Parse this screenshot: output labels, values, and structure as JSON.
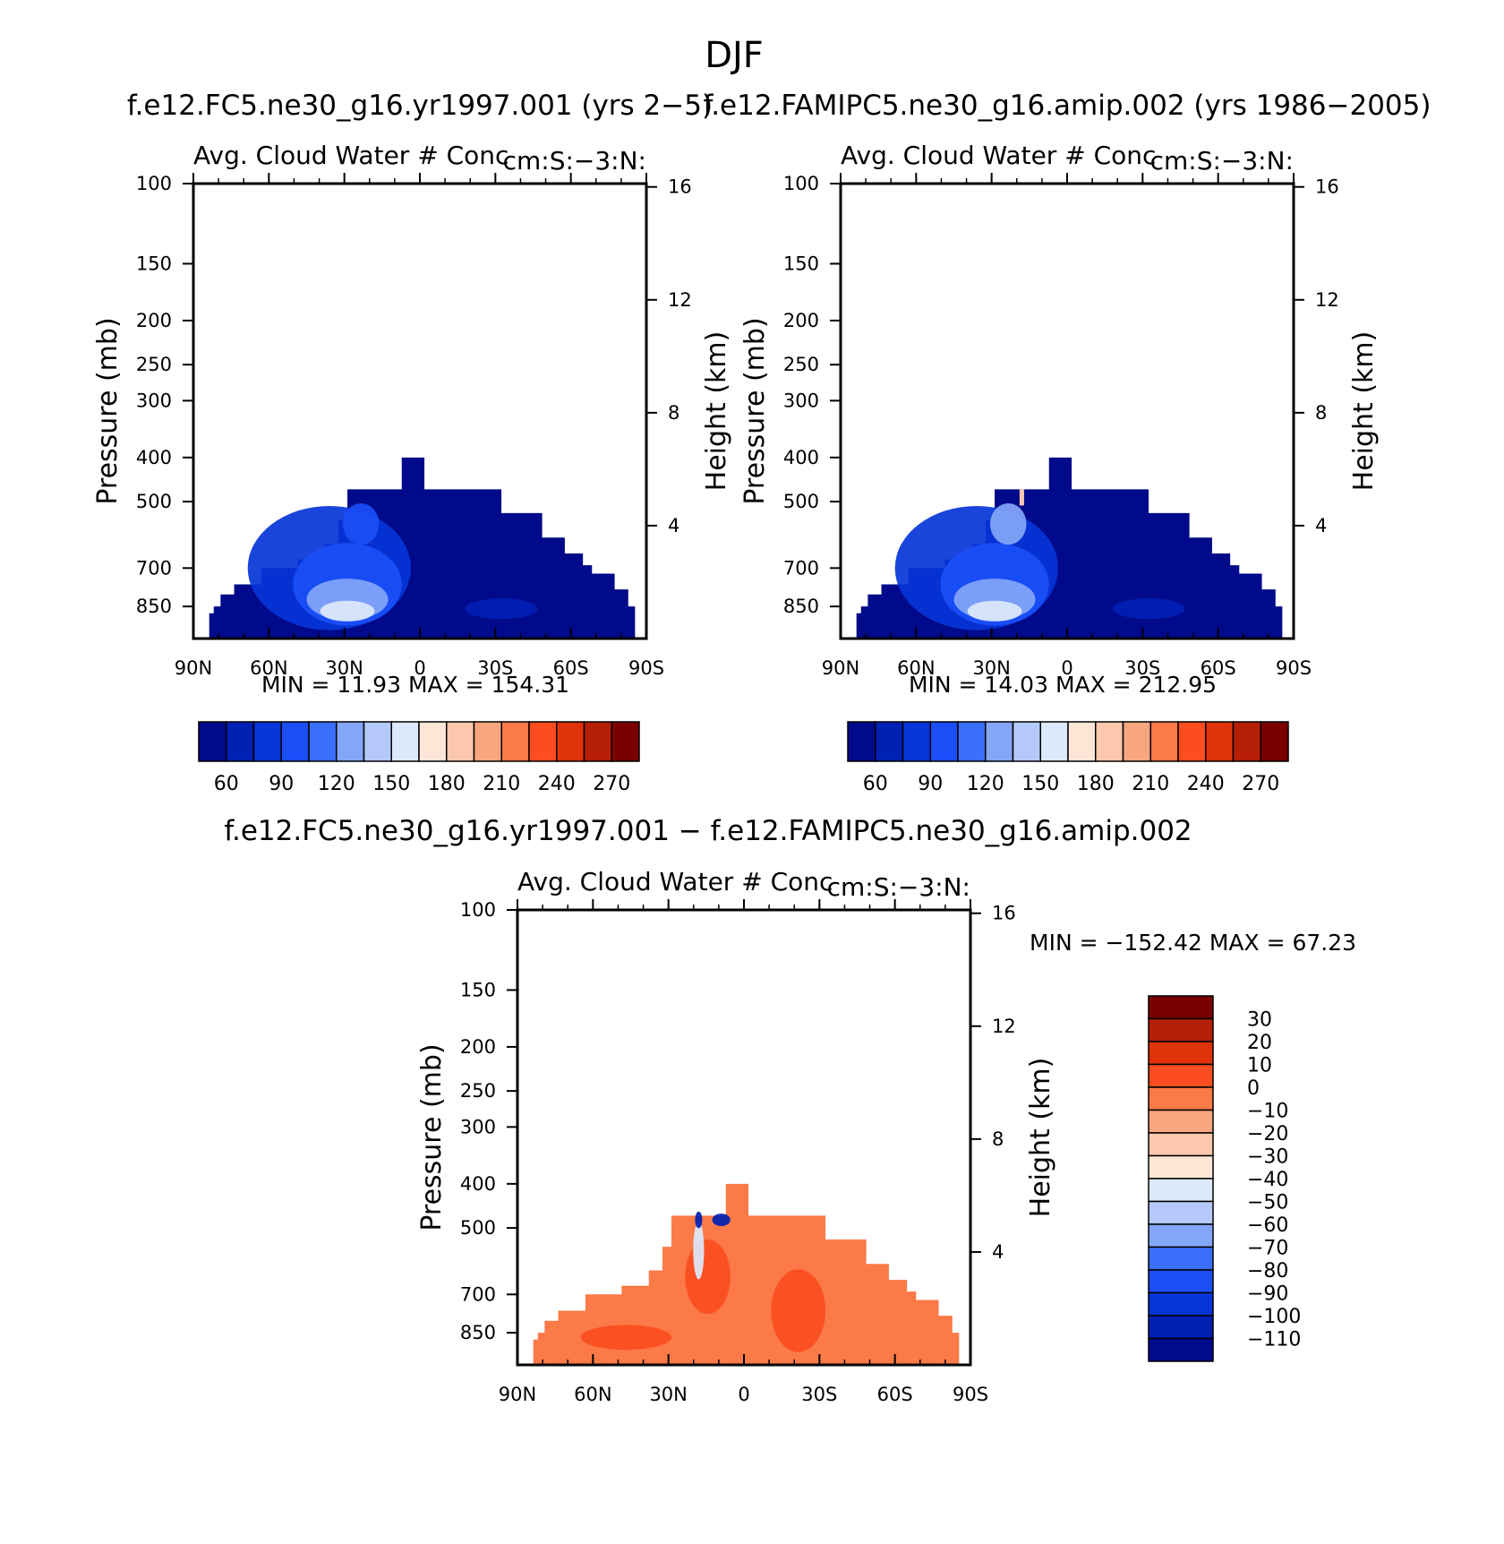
{
  "figure": {
    "title": "DJF"
  },
  "chart_data": [
    {
      "type": "heatmap",
      "case_title": "f.e12.FC5.ne30_g16.yr1997.001 (yrs 2-5)",
      "left_title": "Avg. Cloud Water # Conc",
      "right_title": "cm:S:-3:N:",
      "ylabel": "Pressure (mb)",
      "y2label": "Height (km)",
      "x_ticks": [
        "90N",
        "60N",
        "30N",
        "0",
        "30S",
        "60S",
        "90S"
      ],
      "y_ticks": [
        100,
        150,
        200,
        250,
        300,
        400,
        500,
        700,
        850
      ],
      "y2_ticks": [
        16,
        12,
        8,
        4
      ],
      "ylim": [
        100,
        1000
      ],
      "stats": "MIN =   11.93   MAX =  154.31",
      "colorbar": {
        "orientation": "horizontal",
        "labels": [
          "60",
          "90",
          "120",
          "150",
          "180",
          "210",
          "240",
          "270"
        ],
        "colors": [
          "#000a8a",
          "#0020b4",
          "#0735d8",
          "#1a4ef6",
          "#3b6ffa",
          "#84a6f7",
          "#b4c9f9",
          "#dce9fb",
          "#fde6d6",
          "#fcc8ad",
          "#f8a67f",
          "#fb7a48",
          "#fb4d1f",
          "#e03309",
          "#b61f07",
          "#7a0000"
        ]
      }
    },
    {
      "type": "heatmap",
      "case_title": "f.e12.FAMIPC5.ne30_g16.amip.002 (yrs 1986-2005)",
      "left_title": "Avg. Cloud Water # Conc",
      "right_title": "cm:S:-3:N:",
      "ylabel": "Pressure (mb)",
      "y2label": "Height (km)",
      "x_ticks": [
        "90N",
        "60N",
        "30N",
        "0",
        "30S",
        "60S",
        "90S"
      ],
      "y_ticks": [
        100,
        150,
        200,
        250,
        300,
        400,
        500,
        700,
        850
      ],
      "y2_ticks": [
        16,
        12,
        8,
        4
      ],
      "ylim": [
        100,
        1000
      ],
      "stats": "MIN =   14.03   MAX =  212.95",
      "colorbar": {
        "orientation": "horizontal",
        "labels": [
          "60",
          "90",
          "120",
          "150",
          "180",
          "210",
          "240",
          "270"
        ],
        "colors": [
          "#000a8a",
          "#0020b4",
          "#0735d8",
          "#1a4ef6",
          "#3b6ffa",
          "#84a6f7",
          "#b4c9f9",
          "#dce9fb",
          "#fde6d6",
          "#fcc8ad",
          "#f8a67f",
          "#fb7a48",
          "#fb4d1f",
          "#e03309",
          "#b61f07",
          "#7a0000"
        ]
      }
    },
    {
      "type": "heatmap",
      "case_title": "f.e12.FC5.ne30_g16.yr1997.001 - f.e12.FAMIPC5.ne30_g16.amip.002",
      "left_title": "Avg. Cloud Water # Conc",
      "right_title": "cm:S:-3:N:",
      "ylabel": "Pressure (mb)",
      "y2label": "Height (km)",
      "x_ticks": [
        "90N",
        "60N",
        "30N",
        "0",
        "30S",
        "60S",
        "90S"
      ],
      "y_ticks": [
        100,
        150,
        200,
        250,
        300,
        400,
        500,
        700,
        850
      ],
      "y2_ticks": [
        16,
        12,
        8,
        4
      ],
      "ylim": [
        100,
        1000
      ],
      "stats": "MIN = -152.42   MAX =   67.23",
      "colorbar": {
        "orientation": "vertical",
        "labels": [
          "30",
          "20",
          "10",
          "0",
          "-10",
          "-20",
          "-30",
          "-40",
          "-50",
          "-60",
          "-70",
          "-80",
          "-90",
          "-100",
          "-110"
        ],
        "colors": [
          "#7a0000",
          "#b61f07",
          "#e03309",
          "#fb4d1f",
          "#fb7a48",
          "#f8a67f",
          "#fcc8ad",
          "#fde6d6",
          "#dce9fb",
          "#b4c9f9",
          "#84a6f7",
          "#3b6ffa",
          "#1a4ef6",
          "#0735d8",
          "#0020b4",
          "#000a8a"
        ]
      }
    }
  ]
}
